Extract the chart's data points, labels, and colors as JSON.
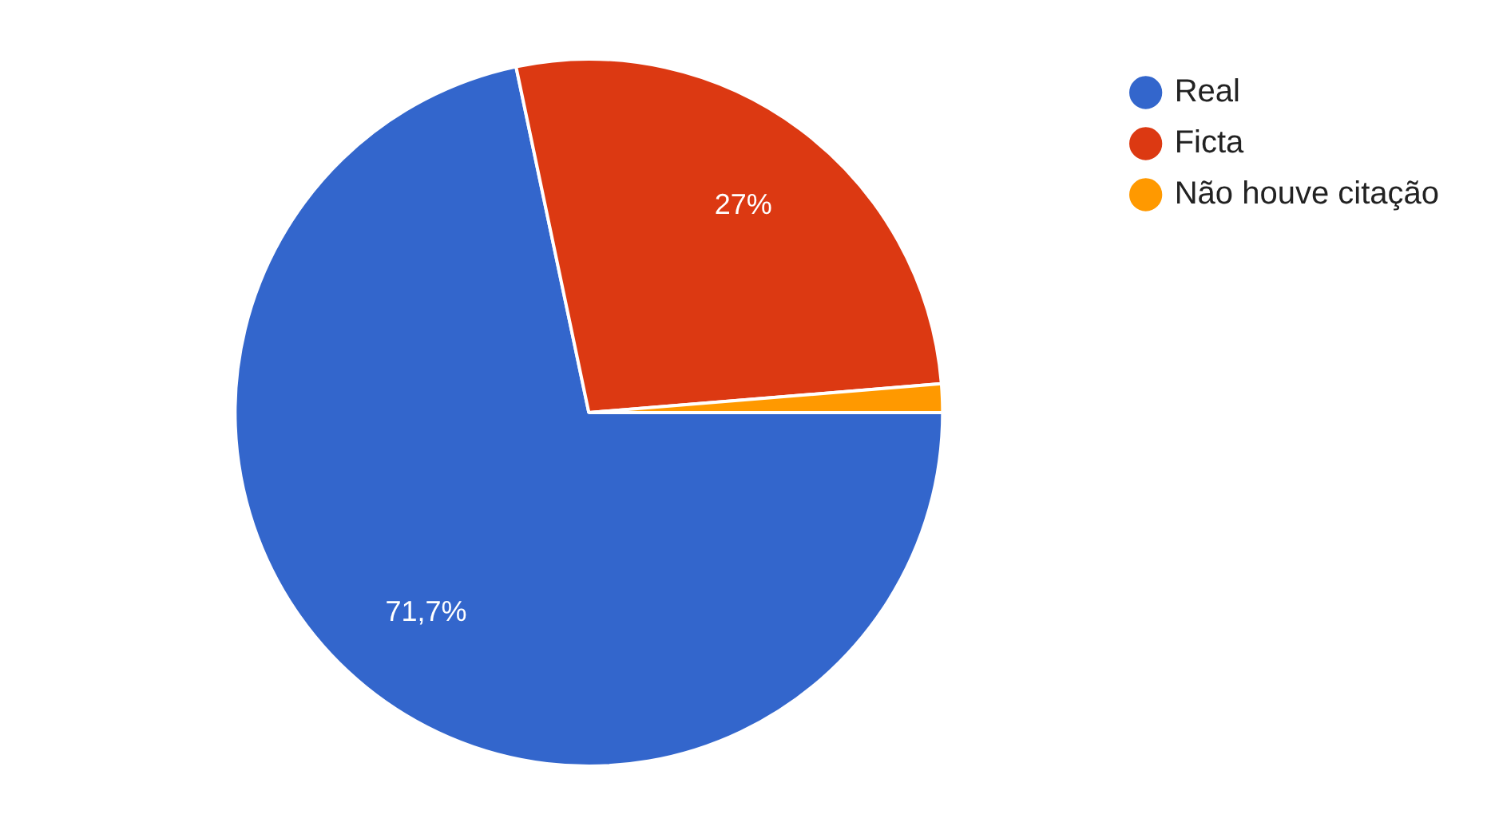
{
  "chart_data": {
    "type": "pie",
    "categories": [
      "Real",
      "Ficta",
      "Não houve citação"
    ],
    "values": [
      71.7,
      27,
      1.3
    ],
    "colors": [
      "#3366cc",
      "#dc3912",
      "#ff9900"
    ],
    "value_labels": [
      "71,7%",
      "27%",
      null
    ],
    "legend": "top right"
  }
}
